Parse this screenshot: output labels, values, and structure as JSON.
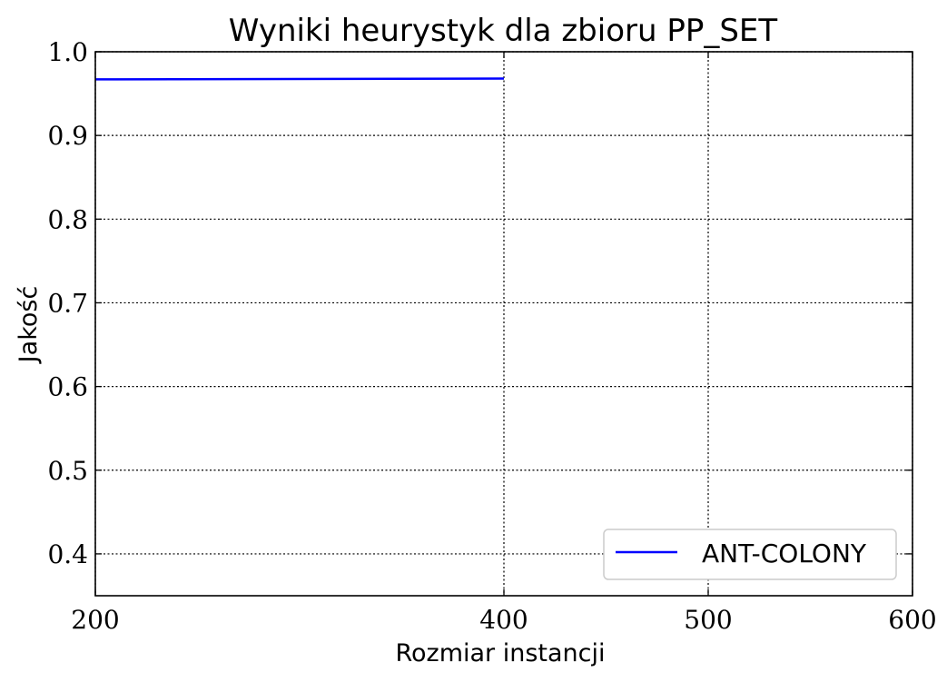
{
  "chart_data": {
    "type": "line",
    "title": "Wyniki heurystyk dla zbioru PP_SET",
    "xlabel": "Rozmiar instancji",
    "ylabel": "Jakość",
    "xlim": [
      200,
      600
    ],
    "ylim": [
      0.35,
      1.0
    ],
    "x_ticks": [
      200,
      400,
      500,
      600
    ],
    "x_tick_labels": [
      "200",
      "400",
      "500",
      "600"
    ],
    "y_ticks": [
      0.4,
      0.5,
      0.6,
      0.7,
      0.8,
      0.9,
      1.0
    ],
    "y_tick_labels": [
      "0.4",
      "0.5",
      "0.6",
      "0.7",
      "0.8",
      "0.9",
      "1.0"
    ],
    "grid": true,
    "legend_position": "bottom-right",
    "series": [
      {
        "name": "ANT-COLONY",
        "color": "#0000ff",
        "x": [
          200,
          400
        ],
        "y": [
          0.967,
          0.968
        ]
      }
    ]
  }
}
